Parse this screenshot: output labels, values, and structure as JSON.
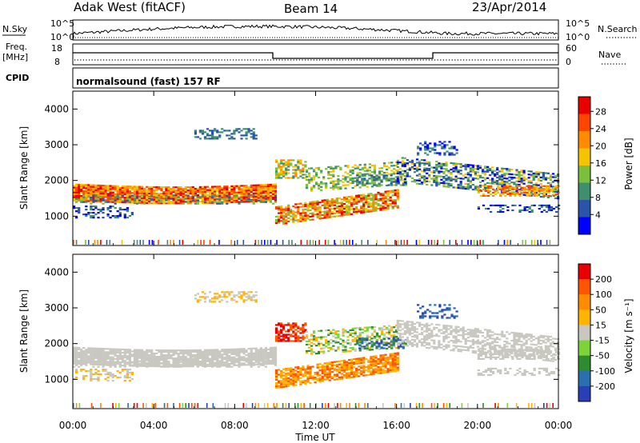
{
  "header": {
    "station": "Adak West (fitACF)",
    "beam": "Beam 14",
    "date": "23/Apr/2014"
  },
  "top_panels": {
    "nsky_label": "N.Sky",
    "nsky_ticks": [
      "10^5",
      "10^0"
    ],
    "nsearch_label": "N.Search",
    "nsearch_ticks": [
      "10^5",
      "10^0"
    ],
    "freq_label_1": "Freq.",
    "freq_label_2": "[MHz]",
    "freq_ticks": [
      "18",
      "8"
    ],
    "nave_label": "Nave",
    "nave_ticks": [
      "60",
      "0"
    ],
    "cpid_label": "CPID",
    "cpid_text": "normalsound (fast) 157 RF"
  },
  "colors": {
    "power": [
      "#0000ff",
      "#2b54a8",
      "#3f8f6f",
      "#7bbf3c",
      "#f5c400",
      "#ff8c00",
      "#ff4500",
      "#e80000"
    ],
    "velocity": [
      "#2b3fb5",
      "#2b6fb0",
      "#2e8b2e",
      "#7dd43a",
      "#c8c8c0",
      "#ffb400",
      "#ff8c00",
      "#ff5500",
      "#e80000"
    ]
  },
  "chart_data": [
    {
      "type": "heatmap",
      "name": "power-panel",
      "ylabel": "Slant Range [km]",
      "yticks": [
        "4000",
        "3000",
        "2000",
        "1000"
      ],
      "ylim": [
        180,
        4500
      ],
      "colorbar_label": "Power [dB]",
      "colorbar_ticks": [
        "28",
        "24",
        "20",
        "16",
        "12",
        "8",
        "4"
      ],
      "colorbar_range": [
        0,
        30
      ]
    },
    {
      "type": "heatmap",
      "name": "velocity-panel",
      "ylabel": "Slant Range [km]",
      "yticks": [
        "4000",
        "3000",
        "2000",
        "1000"
      ],
      "ylim": [
        180,
        4500
      ],
      "colorbar_label": "Velocity [m s⁻¹]",
      "colorbar_ticks": [
        "200",
        "100",
        "50",
        "15",
        "-15",
        "-50",
        "-100",
        "-200"
      ]
    }
  ],
  "xaxis": {
    "label": "Time UT",
    "ticks": [
      "00:00",
      "04:00",
      "08:00",
      "12:00",
      "16:00",
      "20:00",
      "00:00"
    ]
  }
}
